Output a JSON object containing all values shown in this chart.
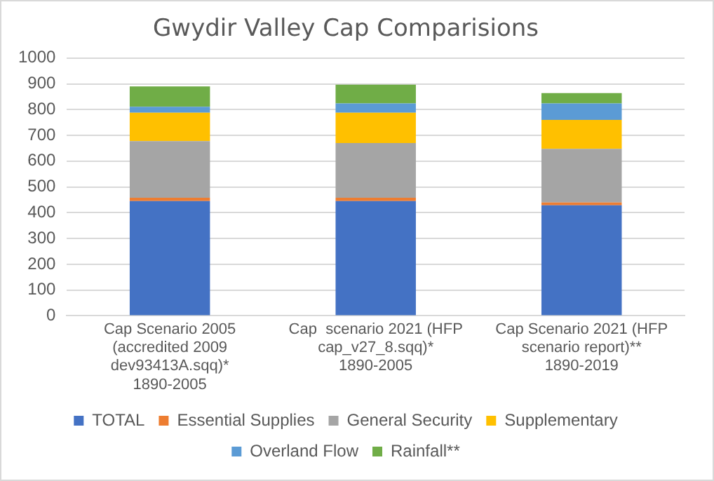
{
  "chart_data": {
    "type": "bar",
    "title": "Gwydir Valley Cap Comparisions",
    "stacked": true,
    "categories": [
      "Cap Scenario 2005 (accredited 2009 dev93413A.sqq)* 1890-2005",
      "Cap  scenario 2021 (HFP cap_v27_8.sqq)* 1890-2005",
      "Cap Scenario 2021 (HFP scenario report)** 1890-2019"
    ],
    "series": [
      {
        "name": "TOTAL",
        "color": "#4472c4",
        "values": [
          445,
          445,
          429
        ]
      },
      {
        "name": "Essential Supplies",
        "color": "#ed7d31",
        "values": [
          13,
          13,
          11
        ]
      },
      {
        "name": "General Security",
        "color": "#a5a5a5",
        "values": [
          220,
          212,
          208
        ]
      },
      {
        "name": "Supplementary",
        "color": "#ffc000",
        "values": [
          110,
          118,
          112
        ]
      },
      {
        "name": "Overland Flow",
        "color": "#5b9bd5",
        "values": [
          23,
          36,
          64
        ]
      },
      {
        "name": "Rainfall**",
        "color": "#70ad47",
        "values": [
          79,
          73,
          40
        ]
      }
    ],
    "ylim": [
      0,
      1000
    ],
    "yticks": [
      0,
      100,
      200,
      300,
      400,
      500,
      600,
      700,
      800,
      900,
      1000
    ],
    "grid": "y",
    "legend": "bottom"
  }
}
